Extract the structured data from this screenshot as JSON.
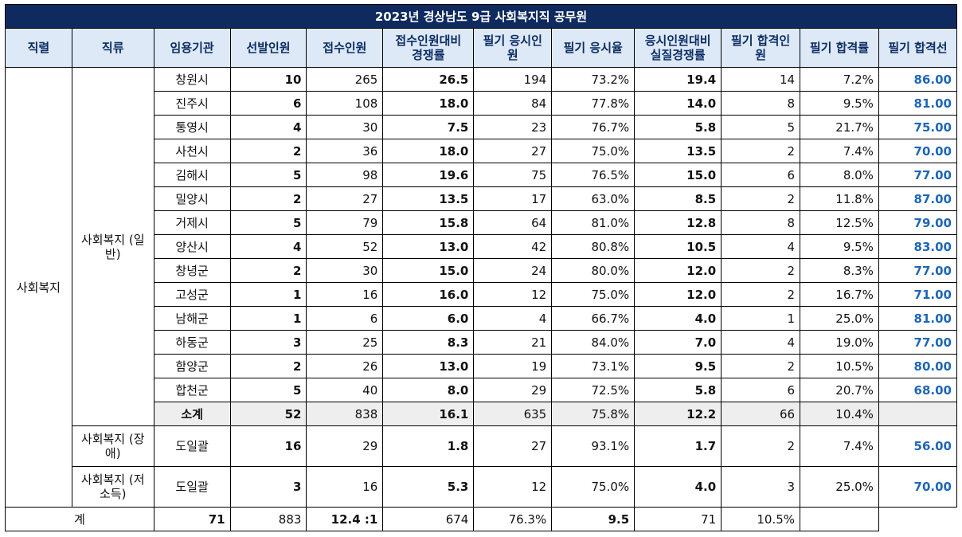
{
  "title": "2023년 경상남도 9급 사회복지직 공무원",
  "headers": [
    "직렬",
    "직류",
    "임용기관",
    "선발인원",
    "접수인원",
    "접수인원대비 경쟁률",
    "필기 응시인원",
    "필기 응시율",
    "응시인원대비 실질경쟁률",
    "필기 합격인원",
    "필기 합격률",
    "필기 합격선"
  ],
  "series": "사회복지",
  "general_group": "사회복지 (일반)",
  "rows": [
    {
      "agency": "창원시",
      "select": "10",
      "apply": "265",
      "rate": "26.5",
      "exam": "194",
      "exam_rate": "73.2%",
      "real_rate": "19.4",
      "pass": "14",
      "pass_rate": "7.2%",
      "cutline": "86.00"
    },
    {
      "agency": "진주시",
      "select": "6",
      "apply": "108",
      "rate": "18.0",
      "exam": "84",
      "exam_rate": "77.8%",
      "real_rate": "14.0",
      "pass": "8",
      "pass_rate": "9.5%",
      "cutline": "81.00"
    },
    {
      "agency": "통영시",
      "select": "4",
      "apply": "30",
      "rate": "7.5",
      "exam": "23",
      "exam_rate": "76.7%",
      "real_rate": "5.8",
      "pass": "5",
      "pass_rate": "21.7%",
      "cutline": "75.00"
    },
    {
      "agency": "사천시",
      "select": "2",
      "apply": "36",
      "rate": "18.0",
      "exam": "27",
      "exam_rate": "75.0%",
      "real_rate": "13.5",
      "pass": "2",
      "pass_rate": "7.4%",
      "cutline": "70.00"
    },
    {
      "agency": "김해시",
      "select": "5",
      "apply": "98",
      "rate": "19.6",
      "exam": "75",
      "exam_rate": "76.5%",
      "real_rate": "15.0",
      "pass": "6",
      "pass_rate": "8.0%",
      "cutline": "77.00"
    },
    {
      "agency": "밀양시",
      "select": "2",
      "apply": "27",
      "rate": "13.5",
      "exam": "17",
      "exam_rate": "63.0%",
      "real_rate": "8.5",
      "pass": "2",
      "pass_rate": "11.8%",
      "cutline": "87.00"
    },
    {
      "agency": "거제시",
      "select": "5",
      "apply": "79",
      "rate": "15.8",
      "exam": "64",
      "exam_rate": "81.0%",
      "real_rate": "12.8",
      "pass": "8",
      "pass_rate": "12.5%",
      "cutline": "79.00"
    },
    {
      "agency": "양산시",
      "select": "4",
      "apply": "52",
      "rate": "13.0",
      "exam": "42",
      "exam_rate": "80.8%",
      "real_rate": "10.5",
      "pass": "4",
      "pass_rate": "9.5%",
      "cutline": "83.00"
    },
    {
      "agency": "창녕군",
      "select": "2",
      "apply": "30",
      "rate": "15.0",
      "exam": "24",
      "exam_rate": "80.0%",
      "real_rate": "12.0",
      "pass": "2",
      "pass_rate": "8.3%",
      "cutline": "77.00"
    },
    {
      "agency": "고성군",
      "select": "1",
      "apply": "16",
      "rate": "16.0",
      "exam": "12",
      "exam_rate": "75.0%",
      "real_rate": "12.0",
      "pass": "2",
      "pass_rate": "16.7%",
      "cutline": "71.00"
    },
    {
      "agency": "남해군",
      "select": "1",
      "apply": "6",
      "rate": "6.0",
      "exam": "4",
      "exam_rate": "66.7%",
      "real_rate": "4.0",
      "pass": "1",
      "pass_rate": "25.0%",
      "cutline": "81.00"
    },
    {
      "agency": "하동군",
      "select": "3",
      "apply": "25",
      "rate": "8.3",
      "exam": "21",
      "exam_rate": "84.0%",
      "real_rate": "7.0",
      "pass": "4",
      "pass_rate": "19.0%",
      "cutline": "77.00"
    },
    {
      "agency": "함양군",
      "select": "2",
      "apply": "26",
      "rate": "13.0",
      "exam": "19",
      "exam_rate": "73.1%",
      "real_rate": "9.5",
      "pass": "2",
      "pass_rate": "10.5%",
      "cutline": "80.00"
    },
    {
      "agency": "합천군",
      "select": "5",
      "apply": "40",
      "rate": "8.0",
      "exam": "29",
      "exam_rate": "72.5%",
      "real_rate": "5.8",
      "pass": "6",
      "pass_rate": "20.7%",
      "cutline": "68.00"
    }
  ],
  "subtotal": {
    "label": "소계",
    "select": "52",
    "apply": "838",
    "rate": "16.1",
    "exam": "635",
    "exam_rate": "75.8%",
    "real_rate": "12.2",
    "pass": "66",
    "pass_rate": "10.4%",
    "cutline": ""
  },
  "extra_rows": [
    {
      "group": "사회복지 (장애)",
      "agency": "도일괄",
      "select": "16",
      "apply": "29",
      "rate": "1.8",
      "exam": "27",
      "exam_rate": "93.1%",
      "real_rate": "1.7",
      "pass": "2",
      "pass_rate": "7.4%",
      "cutline": "56.00"
    },
    {
      "group": "사회복지 (저소득)",
      "agency": "도일괄",
      "select": "3",
      "apply": "16",
      "rate": "5.3",
      "exam": "12",
      "exam_rate": "75.0%",
      "real_rate": "4.0",
      "pass": "3",
      "pass_rate": "25.0%",
      "cutline": "70.00"
    }
  ],
  "total": {
    "label": "계",
    "select": "71",
    "apply": "883",
    "rate": "12.4 :1",
    "exam": "674",
    "exam_rate": "76.3%",
    "real_rate": "9.5",
    "pass": "71",
    "pass_rate": "10.5%",
    "cutline": ""
  },
  "colors": {
    "title_bg": "#0e2a5e",
    "header_bg": "#dde9f7",
    "cutline": "#1f66b8",
    "subtotal_bg": "#eeeeee"
  }
}
